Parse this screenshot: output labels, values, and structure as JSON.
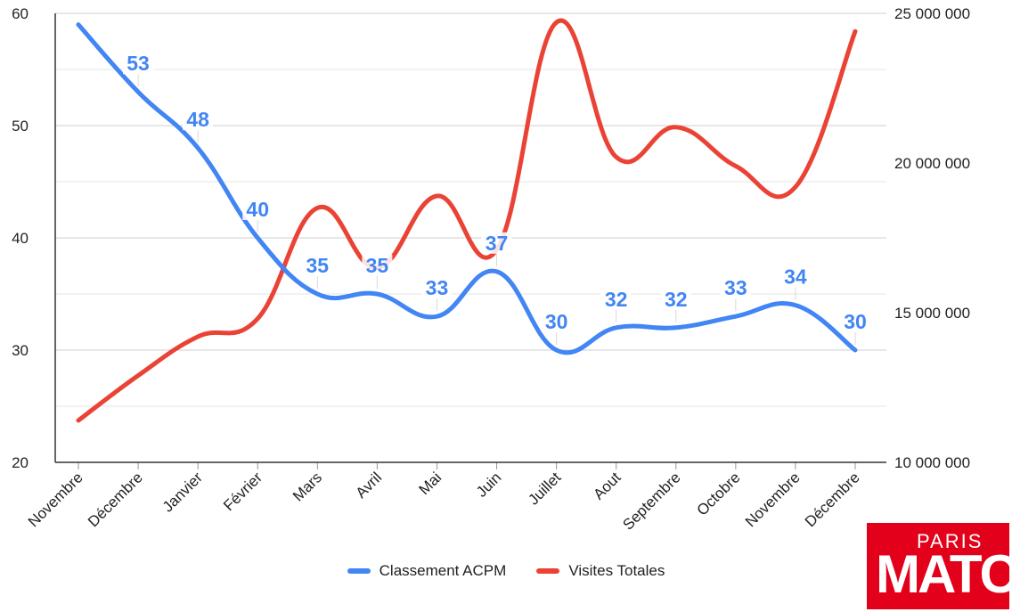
{
  "chart_data": {
    "type": "line",
    "title": "",
    "xlabel": "",
    "ylabel": "",
    "categories": [
      "Novembre",
      "Décembre",
      "Janvier",
      "Février",
      "Mars",
      "Avril",
      "Mai",
      "Juin",
      "Juillet",
      "Aout",
      "Septembre",
      "Octobre",
      "Novembre",
      "Décembre"
    ],
    "y_left": {
      "ylim": [
        20,
        60
      ],
      "ticks": [
        "20",
        "30",
        "40",
        "50",
        "60"
      ]
    },
    "y_right": {
      "ylim": [
        10000000,
        25000000
      ],
      "ticks": [
        "10 000 000",
        "15 000 000",
        "20 000 000",
        "25 000 000"
      ]
    },
    "grid": true,
    "legend_position": "bottom",
    "series": [
      {
        "name": "Classement ACPM",
        "axis": "left",
        "color": "#4285f4",
        "values": [
          59,
          53,
          48,
          40,
          35,
          35,
          33,
          37,
          30,
          32,
          32,
          33,
          34,
          30
        ],
        "labels": [
          "",
          "53",
          "48",
          "40",
          "35",
          "35",
          "33",
          "37",
          "30",
          "32",
          "32",
          "33",
          "34",
          "30"
        ]
      },
      {
        "name": "Visites Totales",
        "axis": "right",
        "color": "#ea4335",
        "values": [
          11400000,
          12900000,
          14200000,
          14800000,
          18500000,
          16500000,
          18900000,
          17100000,
          24700000,
          20200000,
          21200000,
          19900000,
          19200000,
          24400000
        ]
      }
    ]
  },
  "logo": {
    "top": "PARIS",
    "bottom": "MATCH"
  }
}
